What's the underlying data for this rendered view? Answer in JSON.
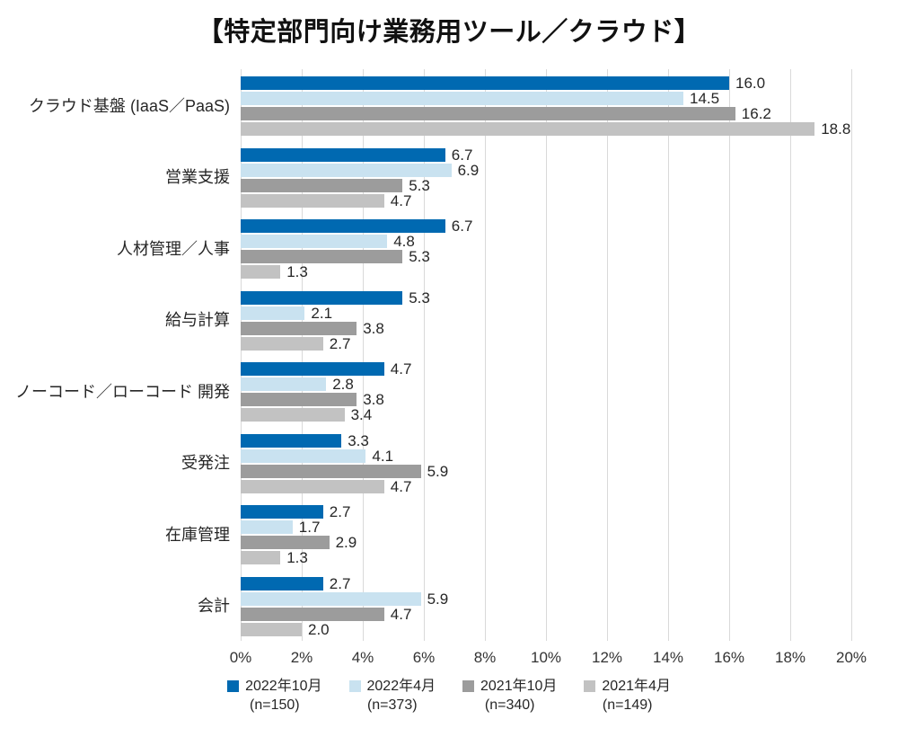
{
  "title": "【特定部門向け業務用ツール／クラウド】",
  "chart_data": {
    "type": "bar",
    "orientation": "horizontal",
    "title": "【特定部門向け業務用ツール／クラウド】",
    "unit": "%",
    "grid": true,
    "legend_position": "bottom",
    "value_labels_decimals": 1,
    "categories": [
      "クラウド基盤 (IaaS／PaaS)",
      "営業支援",
      "人材管理／人事",
      "給与計算",
      "ノーコード／ローコード 開発",
      "受発注",
      "在庫管理",
      "会計"
    ],
    "series": [
      {
        "name": "2022年10月",
        "n_label": "(n=150)",
        "color": "#0069b1",
        "values": [
          16.0,
          6.7,
          6.7,
          5.3,
          4.7,
          3.3,
          2.7,
          2.7
        ]
      },
      {
        "name": "2022年4月",
        "n_label": "(n=373)",
        "color": "#c9e2f0",
        "values": [
          14.5,
          6.9,
          4.8,
          2.1,
          2.8,
          4.1,
          1.7,
          5.9
        ]
      },
      {
        "name": "2021年10月",
        "n_label": "(n=340)",
        "color": "#9c9c9c",
        "values": [
          16.2,
          5.3,
          5.3,
          3.8,
          3.8,
          5.9,
          2.9,
          4.7
        ]
      },
      {
        "name": "2021年4月",
        "n_label": "(n=149)",
        "color": "#c2c2c2",
        "values": [
          18.8,
          4.7,
          1.3,
          2.7,
          3.4,
          4.7,
          1.3,
          2.0
        ]
      }
    ],
    "x_axis": {
      "min": 0,
      "max": 20,
      "step": 2,
      "tick_labels": [
        "0%",
        "2%",
        "4%",
        "6%",
        "8%",
        "10%",
        "12%",
        "14%",
        "16%",
        "18%",
        "20%"
      ]
    },
    "colors": {
      "gridline": "#d9d9d9",
      "text": "#262626",
      "axis_text": "#333333",
      "title_text": "#111111",
      "background": "#ffffff"
    }
  }
}
